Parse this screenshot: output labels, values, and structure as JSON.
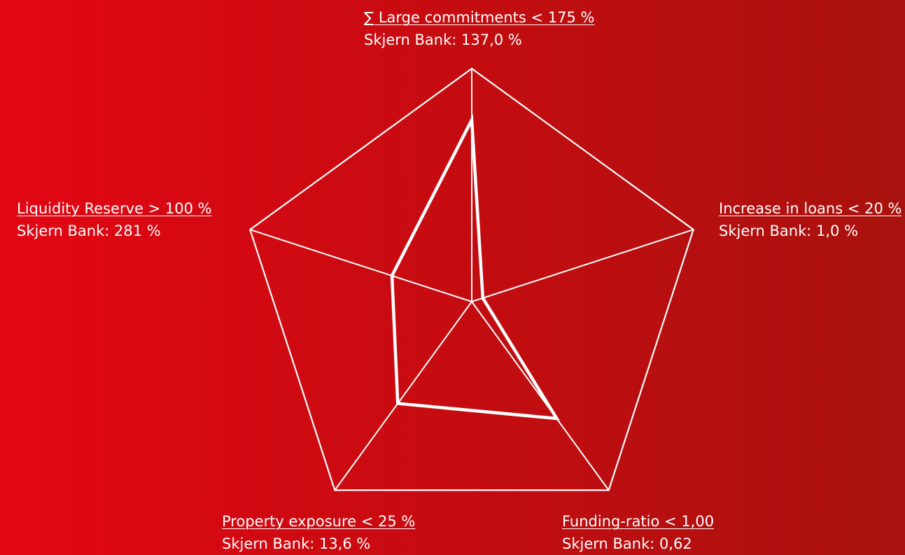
{
  "theme": {
    "gradient_start": "#e20613",
    "gradient_end": "#a8120e",
    "line_color": "#ffffff"
  },
  "chart_data": {
    "type": "radar",
    "title": "",
    "grid": false,
    "axes": [
      {
        "key": "large",
        "limit_label": "∑ Large commitments < 175 %",
        "value_label": "Skjern Bank: 137,0 %",
        "limit": 175,
        "value": 137.0,
        "unit": "%"
      },
      {
        "key": "loans",
        "limit_label": "Increase in loans < 20 %",
        "value_label": "Skjern Bank: 1,0 %",
        "limit": 20,
        "value": 1.0,
        "unit": "%"
      },
      {
        "key": "funding",
        "limit_label": "Funding-ratio < 1,00",
        "value_label": "Skjern Bank: 0,62",
        "limit": 1.0,
        "value": 0.62,
        "unit": ""
      },
      {
        "key": "property",
        "limit_label": "Property exposure < 25 %",
        "value_label": "Skjern Bank: 13,6 %",
        "limit": 25,
        "value": 13.6,
        "unit": "%"
      },
      {
        "key": "liquidity",
        "limit_label": "Liquidity Reserve > 100 %",
        "value_label": "Skjern Bank: 281 %",
        "limit": 100,
        "value": 281,
        "unit": "%"
      }
    ],
    "plotted_fraction_of_limit": [
      0.78,
      0.05,
      0.62,
      0.54,
      0.36
    ]
  }
}
